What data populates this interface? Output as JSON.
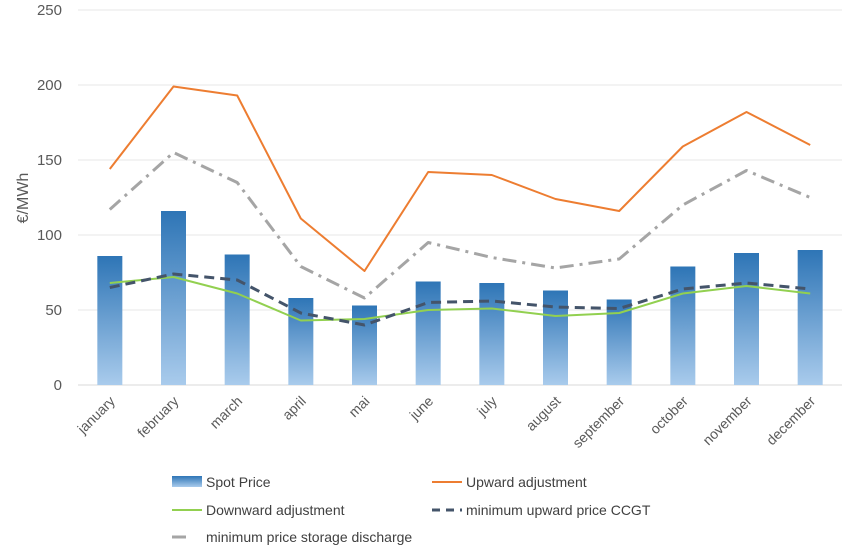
{
  "chart_data": {
    "type": "bar",
    "ylabel": "€/MWh",
    "xlabel": "",
    "ylim": [
      0,
      250
    ],
    "yticks": [
      "0",
      "50",
      "100",
      "150",
      "200",
      "250"
    ],
    "grid": true,
    "legend_position": "bottom",
    "categories": [
      "january",
      "february",
      "march",
      "april",
      "mai",
      "june",
      "july",
      "august",
      "september",
      "october",
      "november",
      "december"
    ],
    "series": [
      {
        "name": "Spot Price",
        "kind": "bar",
        "color": "#2E75B6",
        "values": [
          86,
          116,
          87,
          58,
          53,
          69,
          68,
          63,
          57,
          79,
          88,
          90
        ]
      },
      {
        "name": "Upward adjustment",
        "kind": "line",
        "style": "solid",
        "color": "#ED7D31",
        "values": [
          144,
          199,
          193,
          111,
          76,
          142,
          140,
          124,
          116,
          159,
          182,
          160
        ]
      },
      {
        "name": "Downward adjustment",
        "kind": "line",
        "style": "solid",
        "color": "#92D050",
        "values": [
          68,
          72,
          61,
          43,
          44,
          50,
          51,
          46,
          48,
          61,
          66,
          61
        ]
      },
      {
        "name": "minimum upward price CCGT",
        "kind": "line",
        "style": "dash",
        "color": "#44546A",
        "values": [
          65,
          74,
          70,
          48,
          40,
          55,
          56,
          52,
          51,
          64,
          68,
          64
        ]
      },
      {
        "name": "minimum price storage discharge",
        "kind": "line",
        "style": "dashdot",
        "color": "#A5A5A5",
        "values": [
          117,
          155,
          135,
          79,
          58,
          95,
          85,
          78,
          84,
          120,
          143,
          125
        ]
      }
    ]
  }
}
